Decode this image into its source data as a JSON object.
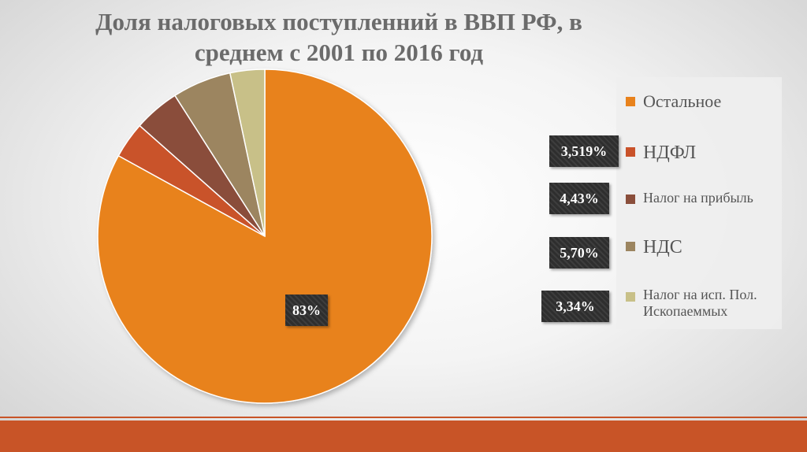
{
  "chart_data": {
    "type": "pie",
    "title": "Доля налоговых поступленний в ВВП РФ, в среднем с 2001 по 2016 год",
    "series": [
      {
        "name": "Остальное",
        "value": 83,
        "label": "83%",
        "color": "#e8821c"
      },
      {
        "name": "НДФЛ",
        "value": 3.519,
        "label": "3,519%",
        "color": "#c9522a"
      },
      {
        "name": "Налог на прибыль",
        "value": 4.43,
        "label": "4,43%",
        "color": "#8a4e3b"
      },
      {
        "name": "НДС",
        "value": 5.7,
        "label": "5,70%",
        "color": "#9c8560"
      },
      {
        "name": "Налог на исп. Пол. Ископаеммых",
        "value": 3.34,
        "label": "3,34%",
        "color": "#c8c088"
      }
    ],
    "legend": "right"
  }
}
